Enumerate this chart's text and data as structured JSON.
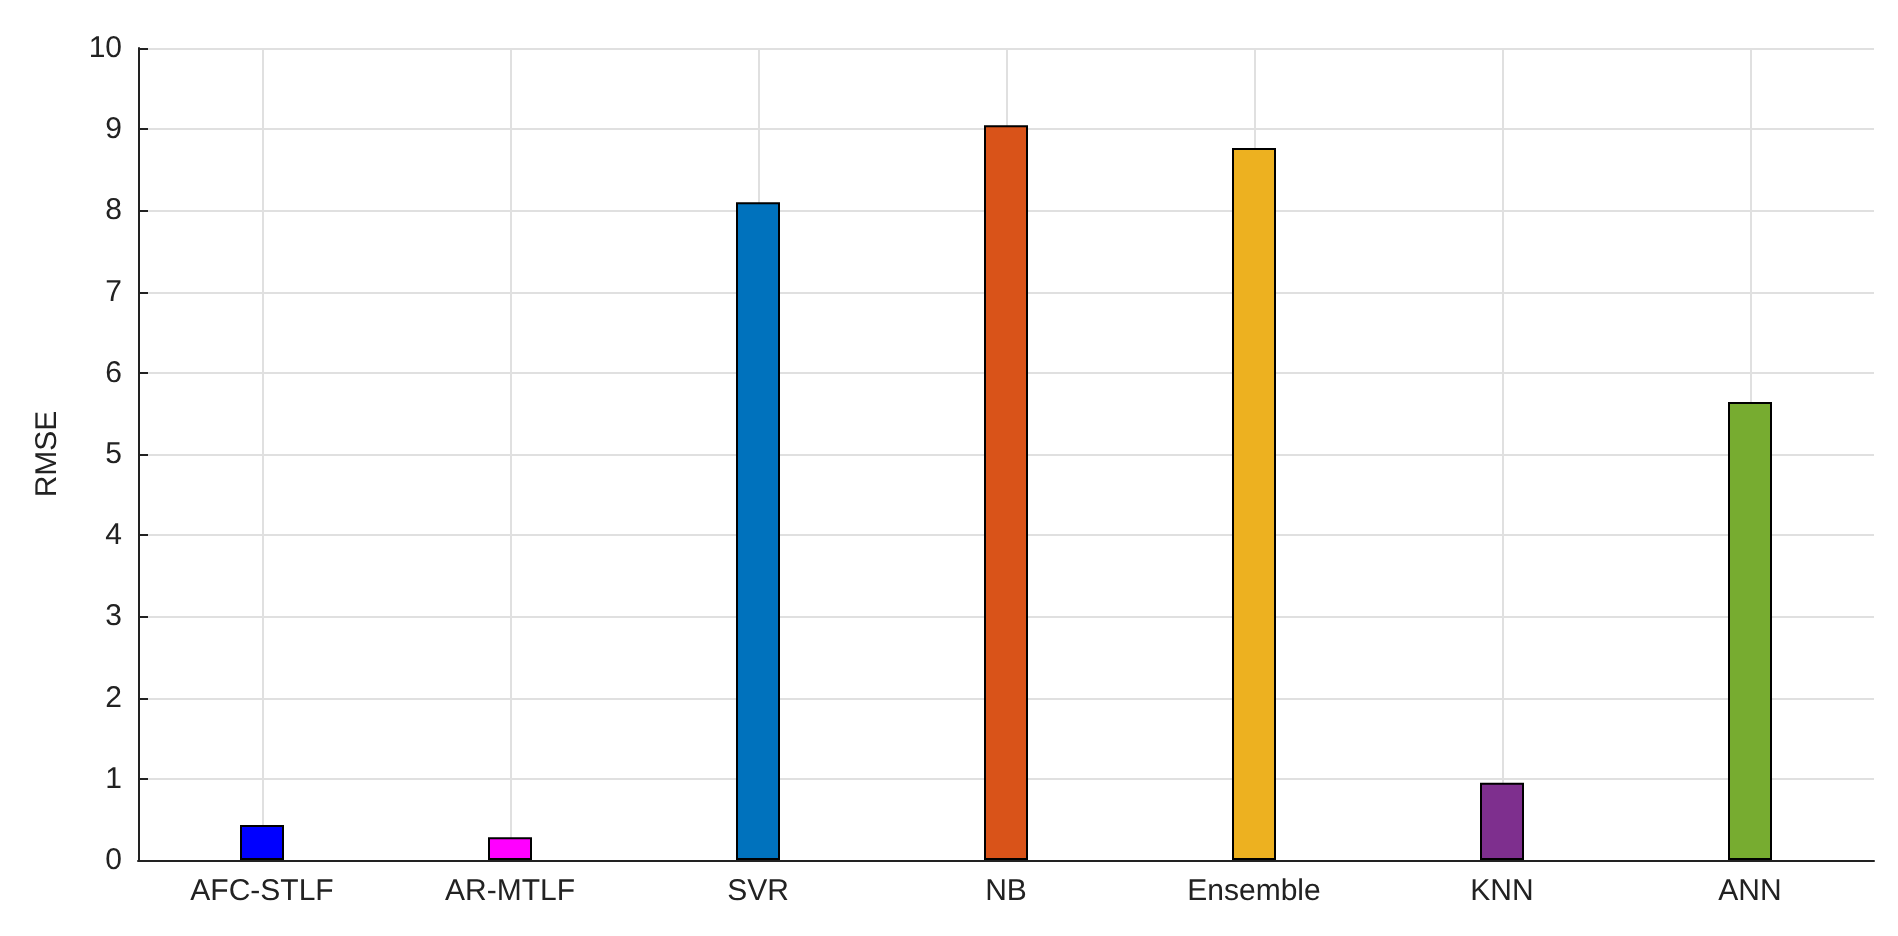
{
  "chart_data": {
    "type": "bar",
    "ylabel": "RMSE",
    "categories": [
      "AFC-STLF",
      "AR-MTLF",
      "SVR",
      "NB",
      "Ensemble",
      "KNN",
      "ANN"
    ],
    "values": [
      0.43,
      0.28,
      8.1,
      9.05,
      8.77,
      0.95,
      5.64
    ],
    "colors": [
      "#0000ff",
      "#ff00ff",
      "#0072bd",
      "#d95319",
      "#edb120",
      "#7e2f8e",
      "#77ac30"
    ],
    "ylim": [
      0,
      10
    ],
    "yticks": [
      0,
      1,
      2,
      3,
      4,
      5,
      6,
      7,
      8,
      9,
      10
    ],
    "grid": true
  }
}
